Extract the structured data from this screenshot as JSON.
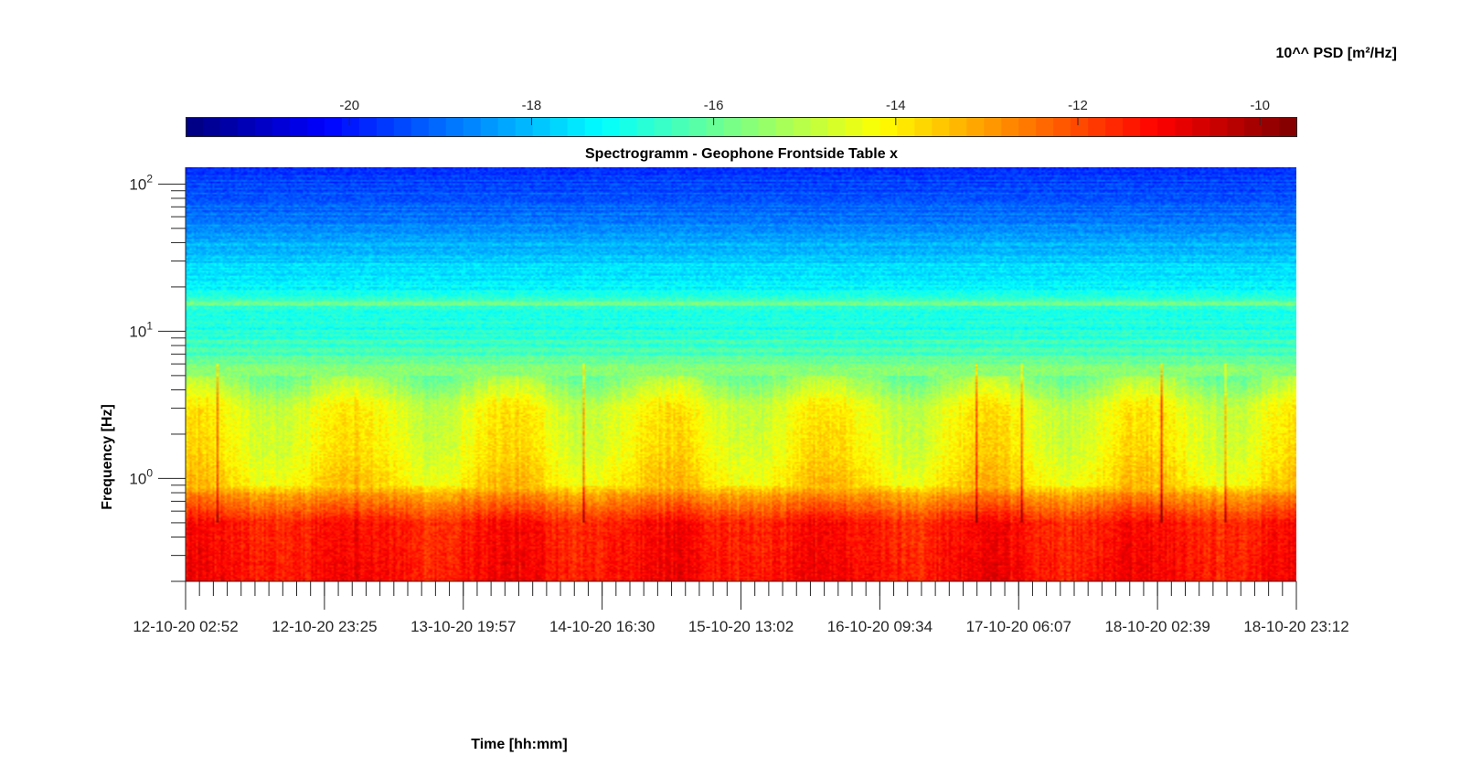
{
  "chart_data": {
    "type": "heatmap",
    "title": "Spectrogramm - Geophone Frontside Table x",
    "xlabel": "Time [hh:mm]",
    "ylabel": "Frequency [Hz]",
    "y_scale": "log",
    "ylim": [
      0.2,
      130
    ],
    "y_ticks": [
      {
        "value": 1,
        "base": "10",
        "exp": "0"
      },
      {
        "value": 10,
        "base": "10",
        "exp": "1"
      },
      {
        "value": 100,
        "base": "10",
        "exp": "2"
      }
    ],
    "x_tick_labels": [
      "12-10-20 02:52",
      "12-10-20 23:25",
      "13-10-20 19:57",
      "14-10-20 16:30",
      "15-10-20 13:02",
      "16-10-20 09:34",
      "17-10-20 06:07",
      "18-10-20 02:39",
      "18-10-20 23:12"
    ],
    "colorbar": {
      "label": "10^^ PSD [m²/Hz]",
      "colormap": "jet",
      "clim": [
        -21.8,
        -9.6
      ],
      "tick_values": [
        -20,
        -18,
        -16,
        -14,
        -12,
        -10
      ],
      "tick_labels": [
        "-20",
        "-18",
        "-16",
        "-14",
        "-12",
        "-10"
      ]
    },
    "intensity_profile": {
      "description_units": "log10 PSD vs frequency",
      "frequency_hz": [
        0.2,
        0.5,
        0.75,
        0.9,
        1.5,
        3,
        5,
        5.8,
        6.5,
        10,
        14,
        15.5,
        17,
        25,
        35,
        50,
        80,
        130
      ],
      "log10_psd": [
        -11.2,
        -11.4,
        -12.8,
        -13.8,
        -14.2,
        -14.4,
        -15.6,
        -15.6,
        -16.2,
        -16.8,
        -17.0,
        -15.9,
        -16.9,
        -17.6,
        -18.0,
        -18.6,
        -19.3,
        -19.6
      ]
    },
    "grid": false
  }
}
